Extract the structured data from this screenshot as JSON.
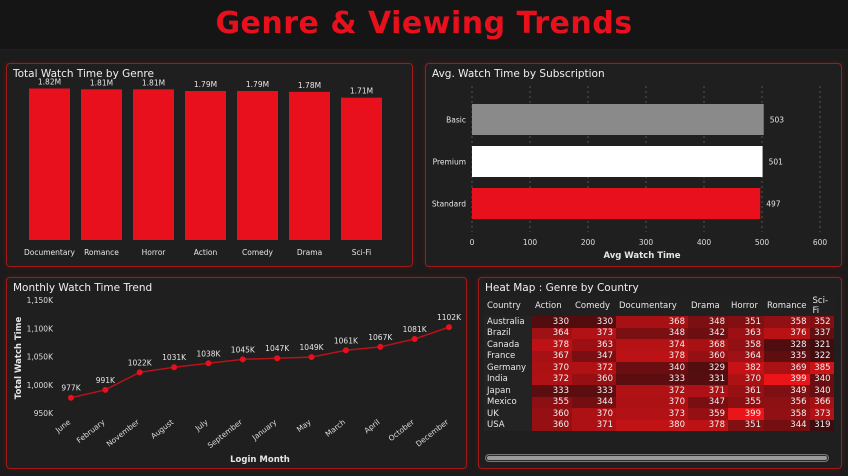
{
  "header": {
    "title": "Genre & Viewing Trends"
  },
  "colors": {
    "accent": "#e8101c",
    "basic_bar": "#8a8a8a",
    "premium_bar": "#ffffff",
    "standard_bar": "#e8101c"
  },
  "chart_data": [
    {
      "type": "bar",
      "title": "Total Watch Time by Genre",
      "categories": [
        "Documentary",
        "Romance",
        "Horror",
        "Action",
        "Comedy",
        "Drama",
        "Sci-Fi"
      ],
      "values": [
        1.82,
        1.81,
        1.81,
        1.79,
        1.79,
        1.78,
        1.71
      ],
      "data_labels": [
        "1.82M",
        "1.81M",
        "1.81M",
        "1.79M",
        "1.79M",
        "1.78M",
        "1.71M"
      ],
      "ylim": [
        0,
        1.85
      ]
    },
    {
      "type": "bar",
      "orientation": "horizontal",
      "title": "Avg. Watch Time by Subscription",
      "categories": [
        "Basic",
        "Premium",
        "Standard"
      ],
      "values": [
        503,
        501,
        497
      ],
      "xlabel": "Avg Watch Time",
      "xlim": [
        0,
        600
      ],
      "xticks": [
        "0",
        "100",
        "200",
        "300",
        "400",
        "500",
        "600"
      ]
    },
    {
      "type": "line",
      "title": "Monthly Watch Time Trend",
      "categories": [
        "June",
        "February",
        "November",
        "August",
        "July",
        "September",
        "January",
        "May",
        "March",
        "April",
        "October",
        "December"
      ],
      "values": [
        977,
        991,
        1022,
        1031,
        1038,
        1045,
        1047,
        1049,
        1061,
        1067,
        1081,
        1102
      ],
      "data_labels": [
        "977K",
        "991K",
        "1022K",
        "1031K",
        "1038K",
        "1045K",
        "1047K",
        "1049K",
        "1061K",
        "1067K",
        "1081K",
        "1102K"
      ],
      "xlabel": "Login Month",
      "ylabel": "Total Watch Time",
      "ylim": [
        950,
        1150
      ],
      "yticks": [
        {
          "value": 950,
          "label": "950K"
        },
        {
          "value": 1000,
          "label": "1,000K"
        },
        {
          "value": 1050,
          "label": "1,050K"
        },
        {
          "value": 1100,
          "label": "1,100K"
        },
        {
          "value": 1150,
          "label": "1,150K"
        }
      ]
    },
    {
      "type": "heatmap",
      "title": "Heat Map : Genre by Country",
      "row_header": "Country",
      "columns": [
        "Action",
        "Comedy",
        "Documentary",
        "Drama",
        "Horror",
        "Romance",
        "Sci-Fi"
      ],
      "rows": [
        "Australia",
        "Brazil",
        "Canada",
        "France",
        "Germany",
        "India",
        "Japan",
        "Mexico",
        "UK",
        "USA"
      ],
      "values": [
        [
          330,
          330,
          368,
          348,
          351,
          358,
          352
        ],
        [
          364,
          373,
          348,
          342,
          363,
          376,
          337
        ],
        [
          378,
          363,
          374,
          368,
          358,
          328,
          321
        ],
        [
          367,
          347,
          378,
          360,
          364,
          335,
          322
        ],
        [
          370,
          372,
          340,
          329,
          382,
          369,
          385
        ],
        [
          372,
          360,
          333,
          331,
          370,
          399,
          340
        ],
        [
          333,
          333,
          372,
          371,
          361,
          349,
          340
        ],
        [
          355,
          344,
          370,
          347,
          355,
          356,
          366
        ],
        [
          360,
          370,
          373,
          359,
          399,
          358,
          373
        ],
        [
          360,
          371,
          380,
          378,
          351,
          344,
          319
        ]
      ],
      "vmin": 319,
      "vmax": 399
    }
  ]
}
